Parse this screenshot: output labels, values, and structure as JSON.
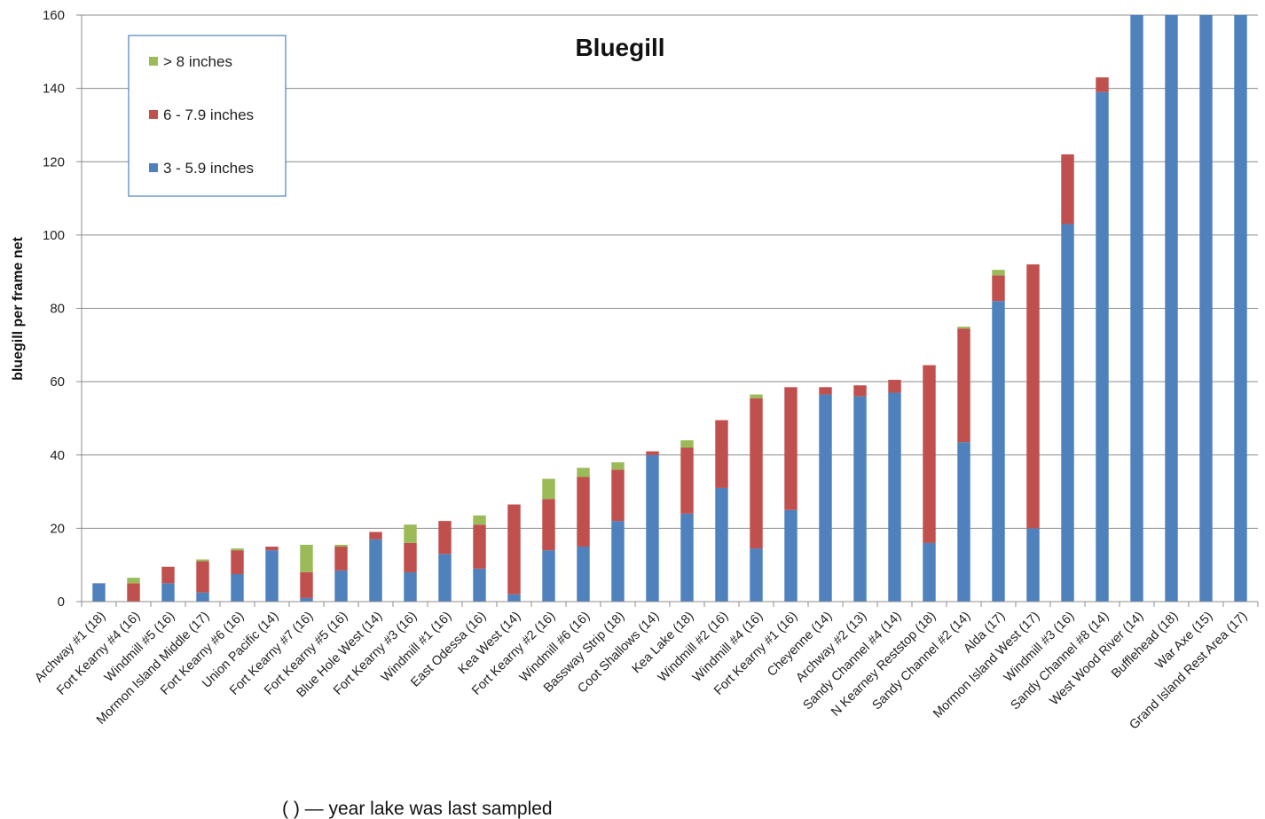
{
  "chart_data": {
    "type": "bar",
    "stacked": true,
    "title": "Bluegill",
    "xlabel": "",
    "ylabel": "bluegill per frame net",
    "ylim": [
      0,
      160
    ],
    "yticks": [
      0,
      20,
      40,
      60,
      80,
      100,
      120,
      140,
      160
    ],
    "grid": true,
    "legend_position": "top-left",
    "footnote": "( ) — year lake was last sampled",
    "categories": [
      "Archway #1 (18)",
      "Fort Kearny #4 (16)",
      "Windmill #5 (16)",
      "Mormon Island Middle (17)",
      "Fort Kearny #6 (16)",
      "Union Pacific (14)",
      "Fort Kearny #7 (16)",
      "Fort Kearny #5 (16)",
      "Blue Hole West (14)",
      "Fort Kearny #3 (16)",
      "Windmill #1 (16)",
      "East Odessa (16)",
      "Kea West (14)",
      "Fort Kearny #2 (16)",
      "Windmill #6 (16)",
      "Bassway Strip (18)",
      "Coot Shallows (14)",
      "Kea Lake (18)",
      "Windmill #2 (16)",
      "Windmill #4 (16)",
      "Fort Kearny #1 (16)",
      "Cheyenne (14)",
      "Archway #2 (13)",
      "Sandy Channel #4 (14)",
      "N Kearney Reststop (18)",
      "Sandy Channel #2 (14)",
      "Alda (17)",
      "Mormon Island West (17)",
      "Windmill #3 (16)",
      "Sandy Channel #8 (14)",
      "West Wood River (14)",
      "Bufflehead (18)",
      "War Axe (15)",
      "Grand Island Rest Area (17)"
    ],
    "series": [
      {
        "name": "3 - 5.9 inches",
        "color": "#4f81bd",
        "values": [
          5,
          0,
          5,
          2.5,
          7.5,
          14,
          1,
          8.5,
          17,
          8,
          13,
          9,
          2,
          14,
          15,
          22,
          40,
          24,
          31,
          14.5,
          25,
          56.5,
          56,
          57,
          16,
          43.5,
          82,
          20,
          103,
          139,
          160,
          160,
          160,
          160
        ]
      },
      {
        "name": "6 - 7.9 inches",
        "color": "#c0504d",
        "values": [
          0,
          5,
          4.5,
          8.5,
          6.5,
          1,
          7,
          6.5,
          2,
          8,
          9,
          12,
          24.5,
          14,
          19,
          14,
          1,
          18,
          18.5,
          41,
          33.5,
          2,
          3,
          3.5,
          48.5,
          31,
          7,
          72,
          19,
          4,
          0,
          0,
          0,
          0
        ]
      },
      {
        "name": "> 8 inches",
        "color": "#9bbb59",
        "values": [
          0,
          1.5,
          0,
          0.5,
          0.5,
          0,
          7.5,
          0.5,
          0,
          5,
          0,
          2.5,
          0,
          5.5,
          2.5,
          2,
          0,
          2,
          0,
          1,
          0,
          0,
          0,
          0,
          0,
          0.5,
          1.5,
          0,
          0,
          0,
          0,
          0,
          0,
          0
        ]
      }
    ],
    "legend_order": [
      "> 8 inches",
      "6 - 7.9 inches",
      "3 - 5.9 inches"
    ]
  }
}
